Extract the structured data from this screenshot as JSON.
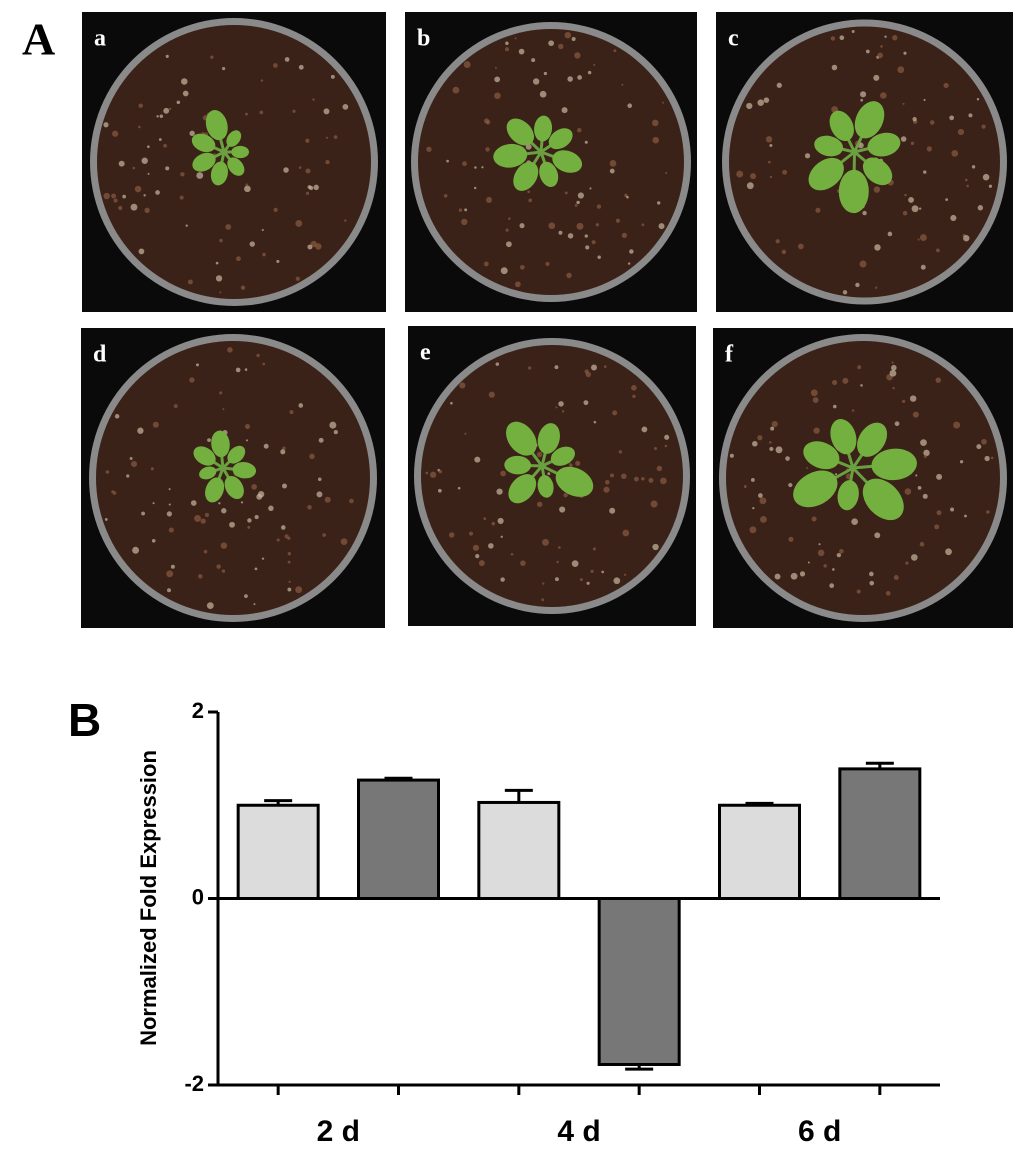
{
  "panel_labels": [
    "A",
    "B"
  ],
  "photo_labels": [
    "a",
    "b",
    "c",
    "d",
    "e",
    "f"
  ],
  "chart_data": {
    "type": "bar",
    "ylabel": "Normalized Fold Expression",
    "categories": [
      "2 d",
      "4 d",
      "6 d"
    ],
    "series": [
      {
        "color": "#dcdcdc",
        "values": [
          1.0,
          1.03,
          1.0
        ],
        "errors": [
          0.05,
          0.13,
          0.02
        ]
      },
      {
        "color": "#777777",
        "values": [
          1.27,
          -1.78,
          1.39
        ],
        "errors": [
          0.02,
          0.05,
          0.06
        ]
      }
    ],
    "ylim": [
      -2,
      2
    ],
    "yticks": [
      -2,
      0,
      2
    ]
  }
}
